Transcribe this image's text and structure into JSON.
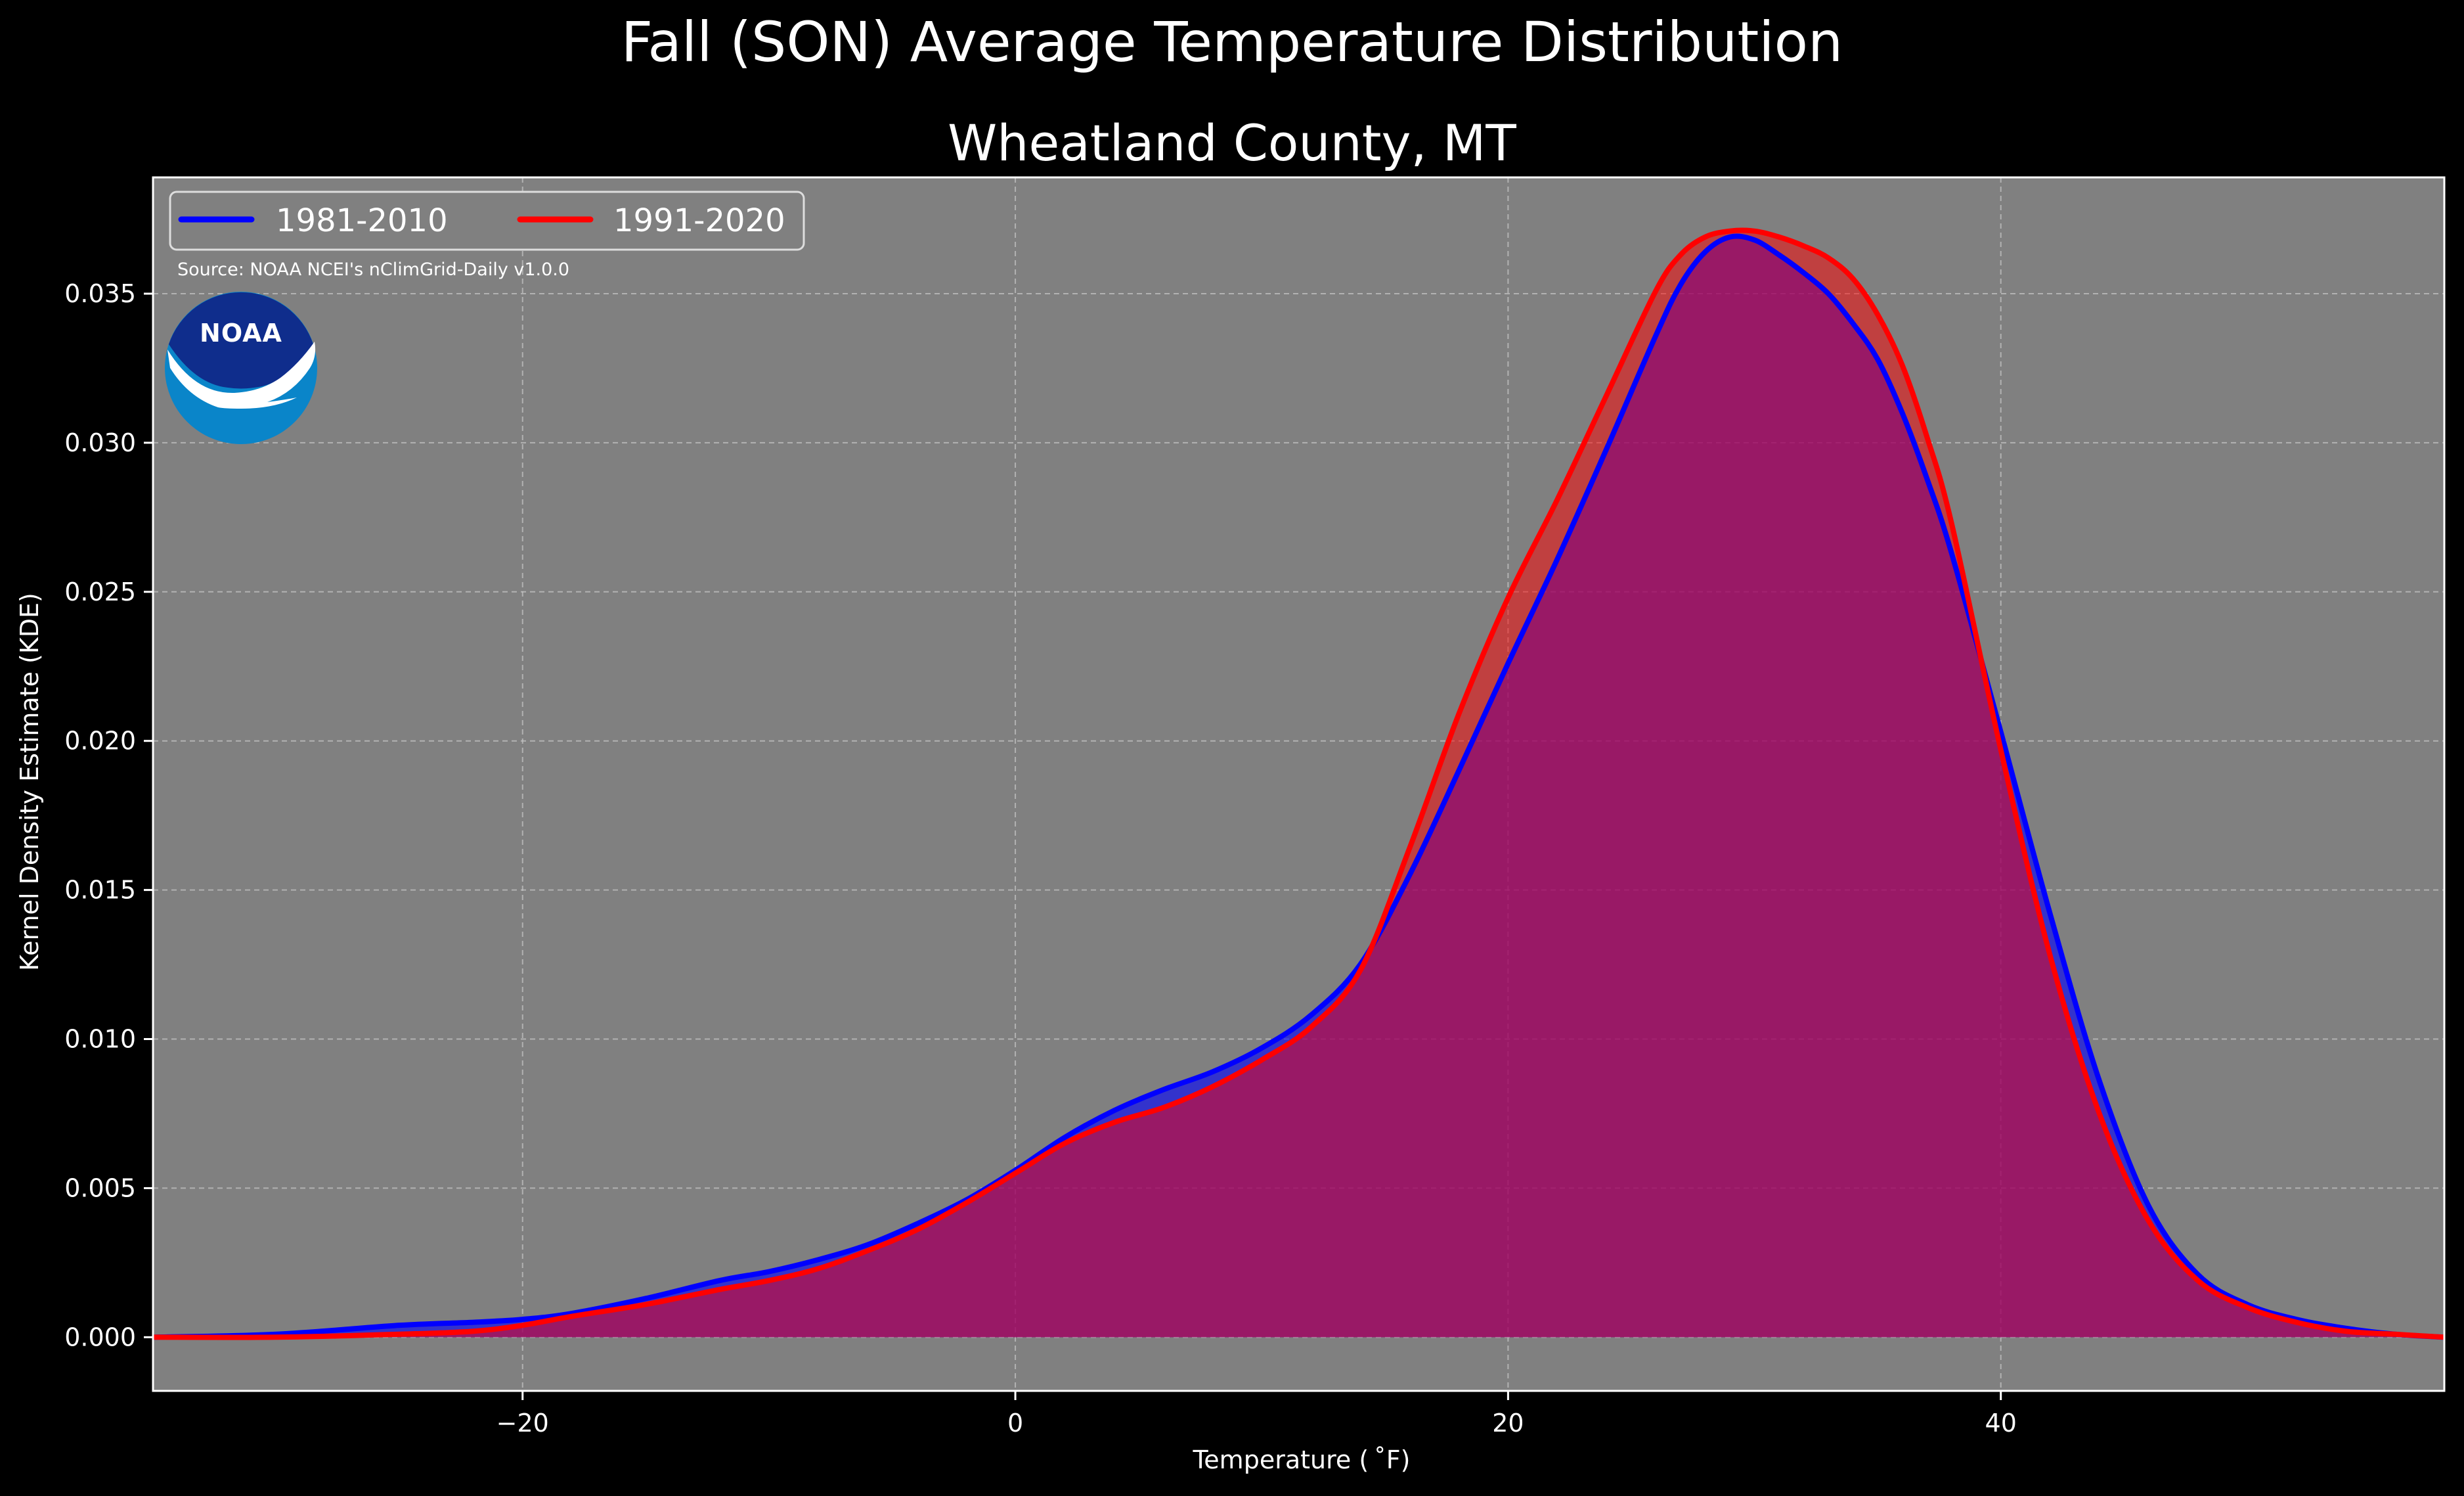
{
  "chart_data": {
    "type": "area",
    "title": "Fall (SON) Average Temperature Distribution",
    "subtitle": "Wheatland County, MT",
    "xlabel": "Temperature ($^\\circ$F)",
    "xlabel_display": "Temperature ( ˚F)",
    "ylabel": "Kernel Density Estimate (KDE)",
    "xlim": [
      -35,
      58
    ],
    "ylim": [
      -0.0018,
      0.0389
    ],
    "xticks": [
      -20,
      0,
      20,
      40
    ],
    "xtick_labels": [
      "−20",
      "0",
      "20",
      "40"
    ],
    "yticks": [
      0.0,
      0.005,
      0.01,
      0.015,
      0.02,
      0.025,
      0.03,
      0.035
    ],
    "ytick_labels": [
      "0.000",
      "0.005",
      "0.010",
      "0.015",
      "0.020",
      "0.025",
      "0.030",
      "0.035"
    ],
    "grid": true,
    "legend_position": "top-left",
    "source_note": "Source: NOAA NCEI's nClimGrid-Daily v1.0.0",
    "logo_text": "NOAA",
    "x": [
      -35,
      -30,
      -25,
      -22,
      -20,
      -18,
      -15,
      -12,
      -10,
      -8,
      -6,
      -4,
      -2,
      0,
      2,
      4,
      6,
      8,
      10,
      12,
      14,
      16,
      18,
      20,
      22,
      24,
      26,
      27,
      28,
      29,
      30,
      31,
      32,
      33,
      34,
      35,
      36,
      37,
      38,
      40,
      42,
      44,
      46,
      48,
      50,
      52,
      54,
      56,
      58
    ],
    "series": [
      {
        "name": "1981-2010",
        "color": "#0000ff",
        "values": [
          0.0,
          0.0001,
          0.0004,
          0.0005,
          0.0006,
          0.0008,
          0.0013,
          0.0019,
          0.0022,
          0.0026,
          0.0031,
          0.0038,
          0.0046,
          0.0056,
          0.0067,
          0.0076,
          0.0083,
          0.0089,
          0.0097,
          0.0108,
          0.0125,
          0.0155,
          0.019,
          0.0226,
          0.0261,
          0.0298,
          0.0336,
          0.0353,
          0.0364,
          0.0369,
          0.0368,
          0.0363,
          0.0357,
          0.035,
          0.034,
          0.0328,
          0.031,
          0.0288,
          0.0263,
          0.0203,
          0.0142,
          0.0086,
          0.0044,
          0.0021,
          0.0011,
          0.0006,
          0.0003,
          0.0001,
          0.0
        ]
      },
      {
        "name": "1991-2020",
        "color": "#ff0000",
        "values": [
          0.0,
          0.0,
          0.0001,
          0.0002,
          0.0004,
          0.0007,
          0.0011,
          0.0016,
          0.0019,
          0.0023,
          0.0029,
          0.0036,
          0.0045,
          0.0055,
          0.0065,
          0.0072,
          0.0077,
          0.0084,
          0.0093,
          0.0104,
          0.0123,
          0.0164,
          0.0209,
          0.0248,
          0.0281,
          0.0316,
          0.0351,
          0.0363,
          0.0369,
          0.0371,
          0.0371,
          0.0369,
          0.0366,
          0.0362,
          0.0355,
          0.0343,
          0.0326,
          0.0302,
          0.0273,
          0.0197,
          0.0128,
          0.0075,
          0.0039,
          0.0019,
          0.001,
          0.0005,
          0.0002,
          0.0001,
          0.0
        ]
      }
    ]
  }
}
